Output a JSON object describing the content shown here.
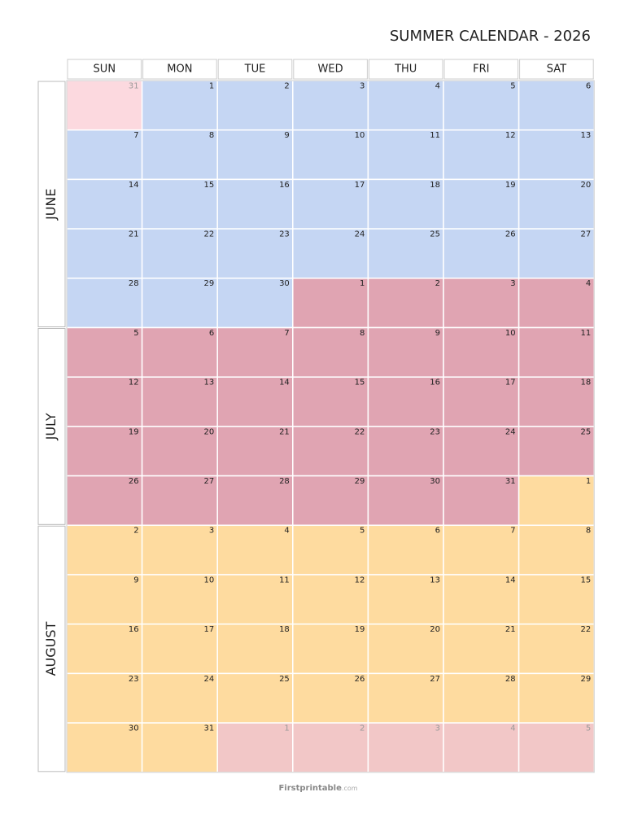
{
  "title": "SUMMER CALENDAR - 2026",
  "weekdays": [
    "SUN",
    "MON",
    "TUE",
    "WED",
    "THU",
    "FRI",
    "SAT"
  ],
  "months": [
    {
      "label": "JUNE",
      "weeks": [
        [
          {
            "day": 31,
            "color": "#fcd9df",
            "muted": true
          },
          {
            "day": 1,
            "color": "#c5d6f3"
          },
          {
            "day": 2,
            "color": "#c5d6f3"
          },
          {
            "day": 3,
            "color": "#c5d6f3"
          },
          {
            "day": 4,
            "color": "#c5d6f3"
          },
          {
            "day": 5,
            "color": "#c5d6f3"
          },
          {
            "day": 6,
            "color": "#c5d6f3"
          }
        ],
        [
          {
            "day": 7,
            "color": "#c5d6f3"
          },
          {
            "day": 8,
            "color": "#c5d6f3"
          },
          {
            "day": 9,
            "color": "#c5d6f3"
          },
          {
            "day": 10,
            "color": "#c5d6f3"
          },
          {
            "day": 11,
            "color": "#c5d6f3"
          },
          {
            "day": 12,
            "color": "#c5d6f3"
          },
          {
            "day": 13,
            "color": "#c5d6f3"
          }
        ],
        [
          {
            "day": 14,
            "color": "#c5d6f3"
          },
          {
            "day": 15,
            "color": "#c5d6f3"
          },
          {
            "day": 16,
            "color": "#c5d6f3"
          },
          {
            "day": 17,
            "color": "#c5d6f3"
          },
          {
            "day": 18,
            "color": "#c5d6f3"
          },
          {
            "day": 19,
            "color": "#c5d6f3"
          },
          {
            "day": 20,
            "color": "#c5d6f3"
          }
        ],
        [
          {
            "day": 21,
            "color": "#c5d6f3"
          },
          {
            "day": 22,
            "color": "#c5d6f3"
          },
          {
            "day": 23,
            "color": "#c5d6f3"
          },
          {
            "day": 24,
            "color": "#c5d6f3"
          },
          {
            "day": 25,
            "color": "#c5d6f3"
          },
          {
            "day": 26,
            "color": "#c5d6f3"
          },
          {
            "day": 27,
            "color": "#c5d6f3"
          }
        ],
        [
          {
            "day": 28,
            "color": "#c5d6f3"
          },
          {
            "day": 29,
            "color": "#c5d6f3"
          },
          {
            "day": 30,
            "color": "#c5d6f3"
          },
          {
            "day": 1,
            "color": "#e0a4b2"
          },
          {
            "day": 2,
            "color": "#e0a4b2"
          },
          {
            "day": 3,
            "color": "#e0a4b2"
          },
          {
            "day": 4,
            "color": "#e0a4b2"
          }
        ]
      ]
    },
    {
      "label": "JULY",
      "weeks": [
        [
          {
            "day": 5,
            "color": "#e0a4b2"
          },
          {
            "day": 6,
            "color": "#e0a4b2"
          },
          {
            "day": 7,
            "color": "#e0a4b2"
          },
          {
            "day": 8,
            "color": "#e0a4b2"
          },
          {
            "day": 9,
            "color": "#e0a4b2"
          },
          {
            "day": 10,
            "color": "#e0a4b2"
          },
          {
            "day": 11,
            "color": "#e0a4b2"
          }
        ],
        [
          {
            "day": 12,
            "color": "#e0a4b2"
          },
          {
            "day": 13,
            "color": "#e0a4b2"
          },
          {
            "day": 14,
            "color": "#e0a4b2"
          },
          {
            "day": 15,
            "color": "#e0a4b2"
          },
          {
            "day": 16,
            "color": "#e0a4b2"
          },
          {
            "day": 17,
            "color": "#e0a4b2"
          },
          {
            "day": 18,
            "color": "#e0a4b2"
          }
        ],
        [
          {
            "day": 19,
            "color": "#e0a4b2"
          },
          {
            "day": 20,
            "color": "#e0a4b2"
          },
          {
            "day": 21,
            "color": "#e0a4b2"
          },
          {
            "day": 22,
            "color": "#e0a4b2"
          },
          {
            "day": 23,
            "color": "#e0a4b2"
          },
          {
            "day": 24,
            "color": "#e0a4b2"
          },
          {
            "day": 25,
            "color": "#e0a4b2"
          }
        ],
        [
          {
            "day": 26,
            "color": "#e0a4b2"
          },
          {
            "day": 27,
            "color": "#e0a4b2"
          },
          {
            "day": 28,
            "color": "#e0a4b2"
          },
          {
            "day": 29,
            "color": "#e0a4b2"
          },
          {
            "day": 30,
            "color": "#e0a4b2"
          },
          {
            "day": 31,
            "color": "#e0a4b2"
          },
          {
            "day": 1,
            "color": "#fedb9f"
          }
        ]
      ]
    },
    {
      "label": "AUGUST",
      "weeks": [
        [
          {
            "day": 2,
            "color": "#fedb9f"
          },
          {
            "day": 3,
            "color": "#fedb9f"
          },
          {
            "day": 4,
            "color": "#fedb9f"
          },
          {
            "day": 5,
            "color": "#fedb9f"
          },
          {
            "day": 6,
            "color": "#fedb9f"
          },
          {
            "day": 7,
            "color": "#fedb9f"
          },
          {
            "day": 8,
            "color": "#fedb9f"
          }
        ],
        [
          {
            "day": 9,
            "color": "#fedb9f"
          },
          {
            "day": 10,
            "color": "#fedb9f"
          },
          {
            "day": 11,
            "color": "#fedb9f"
          },
          {
            "day": 12,
            "color": "#fedb9f"
          },
          {
            "day": 13,
            "color": "#fedb9f"
          },
          {
            "day": 14,
            "color": "#fedb9f"
          },
          {
            "day": 15,
            "color": "#fedb9f"
          }
        ],
        [
          {
            "day": 16,
            "color": "#fedb9f"
          },
          {
            "day": 17,
            "color": "#fedb9f"
          },
          {
            "day": 18,
            "color": "#fedb9f"
          },
          {
            "day": 19,
            "color": "#fedb9f"
          },
          {
            "day": 20,
            "color": "#fedb9f"
          },
          {
            "day": 21,
            "color": "#fedb9f"
          },
          {
            "day": 22,
            "color": "#fedb9f"
          }
        ],
        [
          {
            "day": 23,
            "color": "#fedb9f"
          },
          {
            "day": 24,
            "color": "#fedb9f"
          },
          {
            "day": 25,
            "color": "#fedb9f"
          },
          {
            "day": 26,
            "color": "#fedb9f"
          },
          {
            "day": 27,
            "color": "#fedb9f"
          },
          {
            "day": 28,
            "color": "#fedb9f"
          },
          {
            "day": 29,
            "color": "#fedb9f"
          }
        ],
        [
          {
            "day": 30,
            "color": "#fedb9f"
          },
          {
            "day": 31,
            "color": "#fedb9f"
          },
          {
            "day": 1,
            "color": "#f2c7c7",
            "muted": true
          },
          {
            "day": 2,
            "color": "#f2c7c7",
            "muted": true
          },
          {
            "day": 3,
            "color": "#f2c7c7",
            "muted": true
          },
          {
            "day": 4,
            "color": "#f2c7c7",
            "muted": true
          },
          {
            "day": 5,
            "color": "#f2c7c7",
            "muted": true
          }
        ]
      ]
    }
  ],
  "footer": {
    "brand": "Firstprintable",
    "domain": ".com"
  }
}
